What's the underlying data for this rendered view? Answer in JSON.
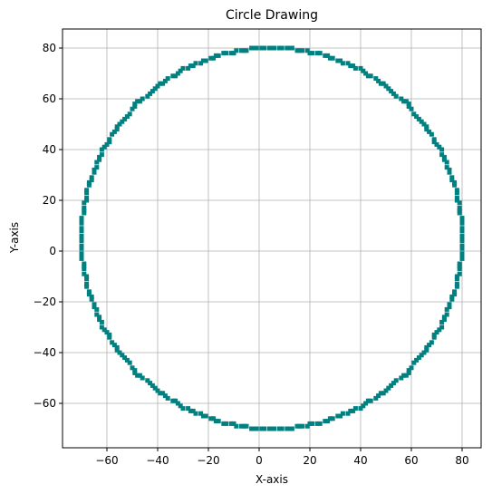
{
  "chart_data": {
    "type": "scatter",
    "title": "Circle Drawing",
    "xlabel": "X-axis",
    "ylabel": "Y-axis",
    "xlim": [
      -77.5,
      87.5
    ],
    "ylim": [
      -77.5,
      87.5
    ],
    "xticks": [
      -60,
      -40,
      -20,
      0,
      20,
      40,
      60,
      80
    ],
    "yticks": [
      -60,
      -40,
      -20,
      0,
      20,
      40,
      60,
      80
    ],
    "xtick_labels": [
      "−60",
      "−40",
      "−20",
      "0",
      "20",
      "40",
      "60",
      "80"
    ],
    "ytick_labels": [
      "−60",
      "−40",
      "−20",
      "0",
      "20",
      "40",
      "60",
      "80"
    ],
    "grid": true,
    "series": [
      {
        "color": "#008080",
        "marker": "square",
        "shape": "circle",
        "center": [
          5,
          5
        ],
        "radius": 75,
        "point_count": 340
      }
    ]
  }
}
